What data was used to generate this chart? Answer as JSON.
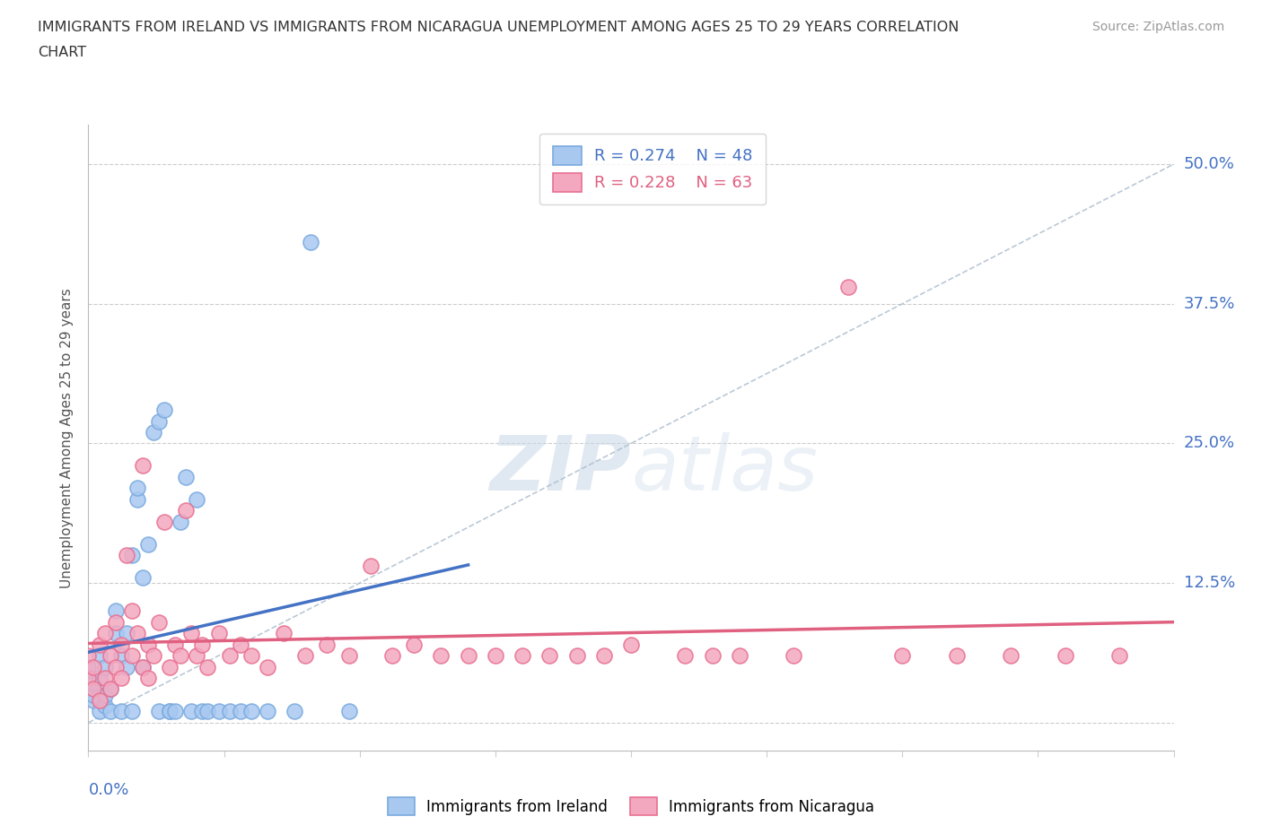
{
  "title_line1": "IMMIGRANTS FROM IRELAND VS IMMIGRANTS FROM NICARAGUA UNEMPLOYMENT AMONG AGES 25 TO 29 YEARS CORRELATION",
  "title_line2": "CHART",
  "source": "Source: ZipAtlas.com",
  "ylabel": "Unemployment Among Ages 25 to 29 years",
  "yticks": [
    0.0,
    0.125,
    0.25,
    0.375,
    0.5
  ],
  "ytick_labels": [
    "",
    "12.5%",
    "25.0%",
    "37.5%",
    "50.0%"
  ],
  "xlim": [
    0.0,
    0.2
  ],
  "ylim": [
    -0.025,
    0.535
  ],
  "ireland_R": 0.274,
  "ireland_N": 48,
  "nicaragua_R": 0.228,
  "nicaragua_N": 63,
  "ireland_color": "#A8C8F0",
  "nicaragua_color": "#F4A8C0",
  "ireland_edge_color": "#7AAADE",
  "nicaragua_edge_color": "#E87090",
  "ireland_line_color": "#4472C4",
  "nicaragua_line_color": "#E06080",
  "diagonal_line_color": "#AABBCC",
  "watermark_color": "#C8D8E8",
  "ireland_x": [
    0.0,
    0.0,
    0.0,
    0.001,
    0.001,
    0.001,
    0.002,
    0.002,
    0.002,
    0.003,
    0.003,
    0.003,
    0.004,
    0.004,
    0.005,
    0.005,
    0.006,
    0.006,
    0.007,
    0.007,
    0.008,
    0.008,
    0.009,
    0.009,
    0.01,
    0.01,
    0.011,
    0.012,
    0.013,
    0.013,
    0.014,
    0.015,
    0.015,
    0.016,
    0.017,
    0.018,
    0.019,
    0.02,
    0.021,
    0.022,
    0.024,
    0.026,
    0.028,
    0.03,
    0.033,
    0.038,
    0.041,
    0.048
  ],
  "ireland_y": [
    0.05,
    0.04,
    0.03,
    0.02,
    0.025,
    0.035,
    0.01,
    0.04,
    0.06,
    0.015,
    0.025,
    0.05,
    0.01,
    0.03,
    0.08,
    0.1,
    0.01,
    0.06,
    0.05,
    0.08,
    0.01,
    0.15,
    0.2,
    0.21,
    0.05,
    0.13,
    0.16,
    0.26,
    0.27,
    0.01,
    0.28,
    0.01,
    0.01,
    0.01,
    0.18,
    0.22,
    0.01,
    0.2,
    0.01,
    0.01,
    0.01,
    0.01,
    0.01,
    0.01,
    0.01,
    0.01,
    0.43,
    0.01
  ],
  "nicaragua_x": [
    0.0,
    0.0,
    0.001,
    0.001,
    0.002,
    0.002,
    0.003,
    0.003,
    0.004,
    0.004,
    0.005,
    0.005,
    0.006,
    0.006,
    0.007,
    0.008,
    0.008,
    0.009,
    0.01,
    0.01,
    0.011,
    0.011,
    0.012,
    0.013,
    0.014,
    0.015,
    0.016,
    0.017,
    0.018,
    0.019,
    0.02,
    0.021,
    0.022,
    0.024,
    0.026,
    0.028,
    0.03,
    0.033,
    0.036,
    0.04,
    0.044,
    0.048,
    0.052,
    0.056,
    0.06,
    0.065,
    0.07,
    0.075,
    0.08,
    0.085,
    0.09,
    0.095,
    0.1,
    0.11,
    0.115,
    0.12,
    0.13,
    0.14,
    0.15,
    0.16,
    0.17,
    0.18,
    0.19
  ],
  "nicaragua_y": [
    0.04,
    0.06,
    0.03,
    0.05,
    0.02,
    0.07,
    0.04,
    0.08,
    0.03,
    0.06,
    0.05,
    0.09,
    0.04,
    0.07,
    0.15,
    0.06,
    0.1,
    0.08,
    0.05,
    0.23,
    0.04,
    0.07,
    0.06,
    0.09,
    0.18,
    0.05,
    0.07,
    0.06,
    0.19,
    0.08,
    0.06,
    0.07,
    0.05,
    0.08,
    0.06,
    0.07,
    0.06,
    0.05,
    0.08,
    0.06,
    0.07,
    0.06,
    0.14,
    0.06,
    0.07,
    0.06,
    0.06,
    0.06,
    0.06,
    0.06,
    0.06,
    0.06,
    0.07,
    0.06,
    0.06,
    0.06,
    0.06,
    0.39,
    0.06,
    0.06,
    0.06,
    0.06,
    0.06
  ]
}
